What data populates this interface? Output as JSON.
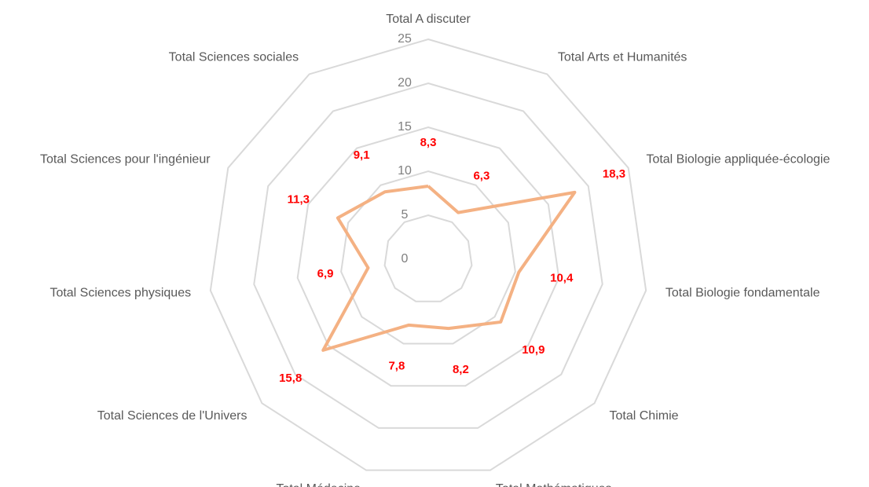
{
  "chart_data": {
    "type": "radar",
    "categories": [
      "Total A discuter",
      "Total Arts et Humanités",
      "Total Biologie appliquée-écologie",
      "Total Biologie fondamentale",
      "Total Chimie",
      "Total Mathématiques",
      "Total Médecine",
      "Total Sciences de l'Univers",
      "Total Sciences physiques",
      "Total Sciences pour l'ingénieur",
      "Total Sciences sociales"
    ],
    "values": [
      8.3,
      6.3,
      18.3,
      10.4,
      10.9,
      8.2,
      7.8,
      15.8,
      6.9,
      11.3,
      9.1
    ],
    "value_labels": [
      "8,3",
      "6,3",
      "18,3",
      "10,4",
      "10,9",
      "8,2",
      "7,8",
      "15,8",
      "6,9",
      "11,3",
      "9,1"
    ],
    "color": "#f4b183",
    "ylim": [
      0,
      25
    ],
    "yticks": [
      0,
      5,
      10,
      15,
      20,
      25
    ],
    "grid": true
  }
}
